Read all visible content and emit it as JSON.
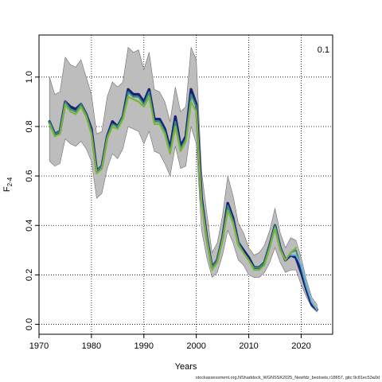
{
  "chart_data": {
    "type": "line",
    "xlabel": "Years",
    "ylabel": "F",
    "ylabel_sub": "2-4",
    "annotation": "0.1",
    "xlim": [
      1970,
      2026
    ],
    "ylim": [
      -0.04,
      1.17
    ],
    "xticks": [
      1970,
      1980,
      1990,
      2000,
      2010,
      2020
    ],
    "yticks": [
      0.0,
      0.2,
      0.4,
      0.6,
      0.8,
      1.0
    ],
    "grid": true,
    "band": {
      "x": [
        1972,
        1973,
        1974,
        1975,
        1976,
        1977,
        1978,
        1979,
        1980,
        1981,
        1982,
        1983,
        1984,
        1985,
        1986,
        1987,
        1988,
        1989,
        1990,
        1991,
        1992,
        1993,
        1994,
        1995,
        1996,
        1997,
        1998,
        1999,
        2000,
        2001,
        2002,
        2003,
        2004,
        2005,
        2006,
        2007,
        2008,
        2009,
        2010,
        2011,
        2012,
        2013,
        2014,
        2015,
        2016,
        2017,
        2018,
        2019,
        2020,
        2021,
        2022,
        2023
      ],
      "upper": [
        1.0,
        0.93,
        0.94,
        1.08,
        1.05,
        1.04,
        1.07,
        1.0,
        0.93,
        0.77,
        0.78,
        0.92,
        0.98,
        0.96,
        0.98,
        1.12,
        1.1,
        1.11,
        1.03,
        1.1,
        0.95,
        0.94,
        0.9,
        0.82,
        0.96,
        0.86,
        0.88,
        1.12,
        1.07,
        0.62,
        0.45,
        0.29,
        0.33,
        0.44,
        0.6,
        0.52,
        0.41,
        0.37,
        0.31,
        0.28,
        0.29,
        0.32,
        0.38,
        0.47,
        0.37,
        0.31,
        0.35,
        0.34,
        0.27,
        0.18,
        0.11,
        0.08
      ],
      "lower": [
        0.66,
        0.64,
        0.65,
        0.75,
        0.73,
        0.72,
        0.74,
        0.71,
        0.66,
        0.51,
        0.53,
        0.63,
        0.69,
        0.67,
        0.71,
        0.8,
        0.79,
        0.78,
        0.73,
        0.78,
        0.7,
        0.69,
        0.65,
        0.6,
        0.72,
        0.63,
        0.64,
        0.8,
        0.73,
        0.38,
        0.27,
        0.19,
        0.21,
        0.28,
        0.38,
        0.33,
        0.26,
        0.24,
        0.2,
        0.19,
        0.19,
        0.21,
        0.25,
        0.31,
        0.25,
        0.21,
        0.22,
        0.22,
        0.16,
        0.11,
        0.07,
        0.05
      ]
    },
    "series": [
      {
        "color": "#1c1f7a",
        "x": [
          1972,
          1973,
          1974,
          1975,
          1976,
          1977,
          1978,
          1979,
          1980,
          1981,
          1982,
          1983,
          1984,
          1985,
          1986,
          1987,
          1988,
          1989,
          1990,
          1991,
          1992,
          1993,
          1994,
          1995,
          1996,
          1997,
          1998,
          1999,
          2000,
          2001,
          2002,
          2003,
          2004,
          2005,
          2006,
          2007,
          2008,
          2009,
          2010,
          2011,
          2012,
          2013,
          2014,
          2015,
          2016,
          2017,
          2018,
          2019,
          2020,
          2021,
          2022,
          2023
        ],
        "values": [
          0.82,
          0.77,
          0.78,
          0.9,
          0.88,
          0.87,
          0.89,
          0.85,
          0.79,
          0.62,
          0.64,
          0.76,
          0.82,
          0.8,
          0.84,
          0.95,
          0.93,
          0.93,
          0.9,
          0.95,
          0.83,
          0.83,
          0.79,
          0.71,
          0.84,
          0.72,
          0.76,
          0.95,
          0.89,
          0.51,
          0.35,
          0.23,
          0.26,
          0.35,
          0.49,
          0.43,
          0.33,
          0.3,
          0.27,
          0.23,
          0.23,
          0.25,
          0.32,
          0.4,
          0.31,
          0.26,
          0.28,
          0.27,
          0.21,
          0.14,
          0.08,
          0.06
        ]
      },
      {
        "color": "#2e8c7a",
        "x": [
          1972,
          1973,
          1974,
          1975,
          1976,
          1977,
          1978,
          1979,
          1980,
          1981,
          1982,
          1983,
          1984,
          1985,
          1986,
          1987,
          1988,
          1989,
          1990,
          1991,
          1992,
          1993,
          1994,
          1995,
          1996,
          1997,
          1998,
          1999,
          2000,
          2001,
          2002,
          2003,
          2004,
          2005,
          2006,
          2007,
          2008,
          2009,
          2010,
          2011,
          2012,
          2013,
          2014,
          2015,
          2016,
          2017,
          2018,
          2019,
          2020,
          2021,
          2022,
          2023
        ],
        "values": [
          0.82,
          0.77,
          0.78,
          0.9,
          0.87,
          0.86,
          0.89,
          0.85,
          0.78,
          0.62,
          0.64,
          0.76,
          0.81,
          0.8,
          0.84,
          0.94,
          0.92,
          0.92,
          0.89,
          0.94,
          0.82,
          0.82,
          0.78,
          0.7,
          0.82,
          0.71,
          0.75,
          0.93,
          0.88,
          0.5,
          0.35,
          0.23,
          0.26,
          0.35,
          0.48,
          0.42,
          0.33,
          0.29,
          0.26,
          0.23,
          0.23,
          0.25,
          0.32,
          0.4,
          0.31,
          0.26,
          0.29,
          0.3,
          0.23,
          0.15,
          0.09,
          0.06
        ]
      },
      {
        "color": "#7ab53a",
        "x": [
          1972,
          1973,
          1974,
          1975,
          1976,
          1977,
          1978,
          1979,
          1980,
          1981,
          1982,
          1983,
          1984,
          1985,
          1986,
          1987,
          1988,
          1989,
          1990,
          1991,
          1992,
          1993,
          1994,
          1995,
          1996,
          1997,
          1998,
          1999,
          2000,
          2001,
          2002,
          2003,
          2004,
          2005,
          2006,
          2007,
          2008,
          2009,
          2010,
          2011,
          2012,
          2013,
          2014,
          2015,
          2016,
          2017,
          2018,
          2019
        ],
        "values": [
          0.81,
          0.76,
          0.77,
          0.89,
          0.86,
          0.85,
          0.88,
          0.84,
          0.77,
          0.61,
          0.63,
          0.75,
          0.8,
          0.79,
          0.83,
          0.92,
          0.91,
          0.9,
          0.88,
          0.92,
          0.81,
          0.81,
          0.77,
          0.69,
          0.8,
          0.7,
          0.74,
          0.9,
          0.86,
          0.49,
          0.34,
          0.22,
          0.25,
          0.34,
          0.46,
          0.41,
          0.32,
          0.29,
          0.26,
          0.22,
          0.22,
          0.24,
          0.31,
          0.39,
          0.3,
          0.26,
          0.29,
          0.31
        ]
      },
      {
        "color": "#6ab4e0",
        "x": [
          2018,
          2019,
          2020,
          2021,
          2022,
          2023
        ],
        "values": [
          0.28,
          0.28,
          0.24,
          0.16,
          0.09,
          0.06
        ]
      }
    ]
  },
  "footer": "stockassessment.org,NShaddock_WGNSSK2025_Newfdz_bestsets,r18657, gitc:9c81ec53a0d"
}
